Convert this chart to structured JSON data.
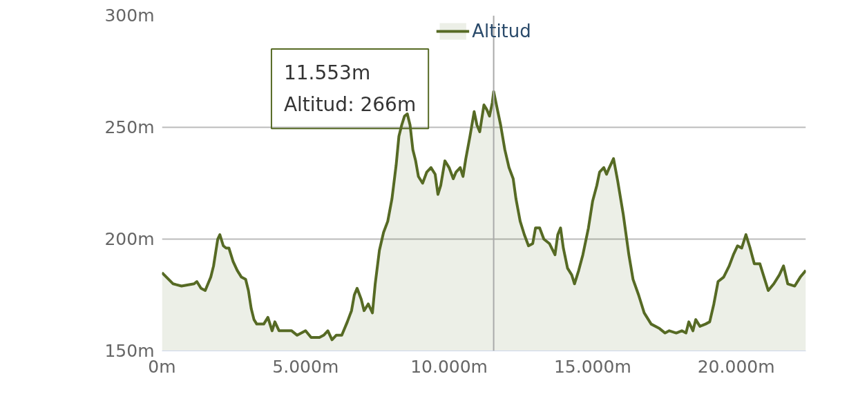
{
  "chart_data": {
    "type": "area",
    "x": [
      0,
      388,
      680,
      1117,
      1214,
      1359,
      1505,
      1699,
      1796,
      1942,
      2015,
      2136,
      2233,
      2330,
      2476,
      2621,
      2767,
      2913,
      3010,
      3107,
      3204,
      3301,
      3544,
      3689,
      3835,
      3932,
      4078,
      4320,
      4515,
      4709,
      5000,
      5194,
      5485,
      5631,
      5777,
      5922,
      6068,
      6262,
      6456,
      6602,
      6699,
      6796,
      6942,
      7039,
      7184,
      7330,
      7427,
      7573,
      7718,
      7864,
      8010,
      8155,
      8252,
      8350,
      8447,
      8544,
      8641,
      8738,
      8835,
      8932,
      9078,
      9223,
      9369,
      9515,
      9612,
      9709,
      9854,
      10000,
      10146,
      10243,
      10388,
      10485,
      10583,
      10728,
      10874,
      10971,
      11068,
      11214,
      11311,
      11408,
      11505,
      11553,
      11650,
      11796,
      11942,
      12087,
      12233,
      12330,
      12476,
      12621,
      12767,
      12913,
      13010,
      13155,
      13301,
      13495,
      13689,
      13786,
      13883,
      13980,
      14126,
      14272,
      14369,
      14515,
      14660,
      14854,
      15000,
      15146,
      15243,
      15388,
      15485,
      15583,
      15728,
      15874,
      16068,
      16262,
      16408,
      16602,
      16796,
      17039,
      17330,
      17524,
      17670,
      17913,
      18107,
      18252,
      18350,
      18495,
      18592,
      18738,
      18932,
      19078,
      19223,
      19369,
      19563,
      19757,
      19903,
      20049,
      20194,
      20340,
      20485,
      20631,
      20825,
      20971,
      21117,
      21311,
      21505,
      21650,
      21796,
      22039,
      22233,
      22427
    ],
    "series": [
      {
        "name": "Altitud",
        "color": "#566a24",
        "values": [
          185,
          180,
          179,
          180,
          181,
          178,
          177,
          183,
          188,
          200,
          202,
          197,
          196,
          196,
          190,
          186,
          183,
          182,
          177,
          169,
          164,
          162,
          162,
          165,
          159,
          163,
          159,
          159,
          159,
          157,
          159,
          156,
          156,
          157,
          159,
          155,
          157,
          157,
          163,
          168,
          175,
          178,
          173,
          168,
          171,
          167,
          180,
          195,
          203,
          208,
          218,
          233,
          246,
          251,
          255,
          256,
          251,
          240,
          235,
          228,
          225,
          230,
          232,
          229,
          220,
          224,
          235,
          232,
          227,
          230,
          232,
          228,
          236,
          246,
          257,
          251,
          248,
          260,
          258,
          255,
          261,
          266,
          260,
          251,
          240,
          232,
          227,
          218,
          208,
          202,
          197,
          198,
          205,
          205,
          200,
          198,
          193,
          202,
          205,
          196,
          187,
          184,
          180,
          186,
          193,
          205,
          217,
          224,
          230,
          232,
          229,
          232,
          236,
          226,
          211,
          193,
          182,
          175,
          167,
          162,
          160,
          158,
          159,
          158,
          159,
          158,
          163,
          159,
          164,
          161,
          162,
          163,
          171,
          181,
          183,
          188,
          193,
          197,
          196,
          202,
          196,
          189,
          189,
          183,
          177,
          180,
          184,
          188,
          180,
          179,
          183,
          186
        ]
      }
    ],
    "xlim": [
      0,
      22427
    ],
    "ylim": [
      150,
      300
    ],
    "xticks": [
      {
        "value": 0,
        "label": "0m"
      },
      {
        "value": 5000,
        "label": "5.000m"
      },
      {
        "value": 10000,
        "label": "10.000m"
      },
      {
        "value": 15000,
        "label": "15.000m"
      },
      {
        "value": 20000,
        "label": "20.000m"
      }
    ],
    "yticks": [
      {
        "value": 150,
        "label": "150m"
      },
      {
        "value": 200,
        "label": "200m"
      },
      {
        "value": 250,
        "label": "250m"
      },
      {
        "value": 300,
        "label": "300m"
      }
    ],
    "grid": "y",
    "legend": "top",
    "ref_lines": [
      {
        "axis": "x",
        "value": 11553,
        "color": "#aaaaaa"
      }
    ],
    "annotations": [
      "11.553m\nAltitud: 266m"
    ]
  }
}
